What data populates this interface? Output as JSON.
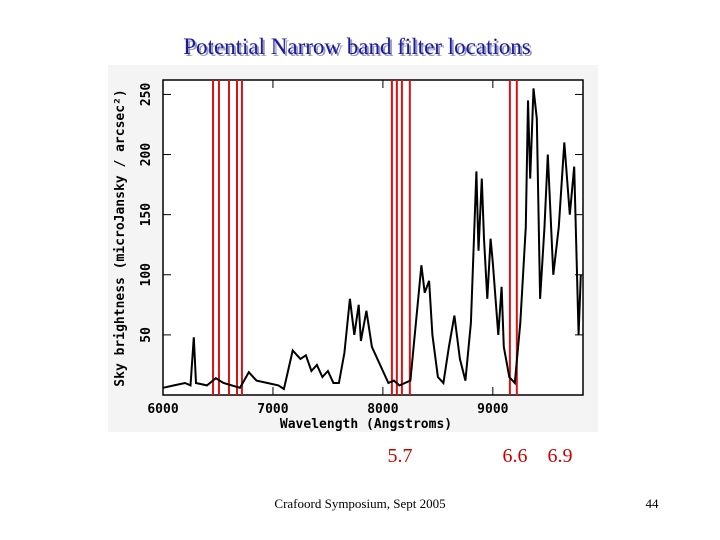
{
  "chart_data": {
    "type": "line",
    "title": "Potential Narrow band filter locations",
    "xlabel": "Wavelength (Angstroms)",
    "ylabel": "Sky brightness (microJansky / arcsec²)",
    "x": [
      6000,
      6100,
      6200,
      6250,
      6280,
      6300,
      6400,
      6480,
      6550,
      6700,
      6780,
      6850,
      6950,
      7050,
      7100,
      7180,
      7250,
      7300,
      7350,
      7400,
      7450,
      7500,
      7550,
      7600,
      7650,
      7700,
      7740,
      7780,
      7800,
      7850,
      7900,
      7950,
      8000,
      8050,
      8100,
      8150,
      8250,
      8300,
      8350,
      8380,
      8420,
      8450,
      8500,
      8550,
      8600,
      8650,
      8700,
      8750,
      8800,
      8850,
      8870,
      8900,
      8920,
      8950,
      8980,
      9000,
      9050,
      9080,
      9100,
      9150,
      9200,
      9250,
      9300,
      9320,
      9340,
      9370,
      9400,
      9430,
      9470,
      9500,
      9550,
      9600,
      9650,
      9700,
      9740,
      9780,
      9800
    ],
    "values": [
      6,
      8,
      10,
      8,
      48,
      10,
      8,
      14,
      10,
      6,
      19,
      12,
      10,
      8,
      5,
      37,
      30,
      33,
      20,
      25,
      15,
      20,
      10,
      10,
      35,
      80,
      50,
      75,
      45,
      70,
      40,
      30,
      20,
      10,
      12,
      8,
      12,
      60,
      108,
      85,
      95,
      50,
      15,
      10,
      40,
      66,
      30,
      12,
      60,
      186,
      120,
      180,
      130,
      80,
      130,
      110,
      50,
      90,
      40,
      15,
      10,
      60,
      140,
      245,
      180,
      255,
      230,
      80,
      140,
      200,
      100,
      140,
      210,
      150,
      190,
      50,
      100
    ],
    "color": "#000000",
    "xlim": [
      6000,
      9820
    ],
    "ylim": [
      0,
      262
    ],
    "xticks": [
      6000,
      7000,
      8000,
      9000
    ],
    "yticks": [
      50,
      100,
      150,
      200,
      250
    ],
    "filters": [
      6455,
      6509,
      6600,
      6673,
      6718,
      8082,
      8127,
      8173,
      8245,
      9155,
      9218
    ],
    "filter_color": "#dd1111",
    "annotations": [
      "5.7",
      "6.6",
      "6.9"
    ]
  },
  "footer": "Crafoord Symposium, Sept 2005",
  "page_number": "44"
}
